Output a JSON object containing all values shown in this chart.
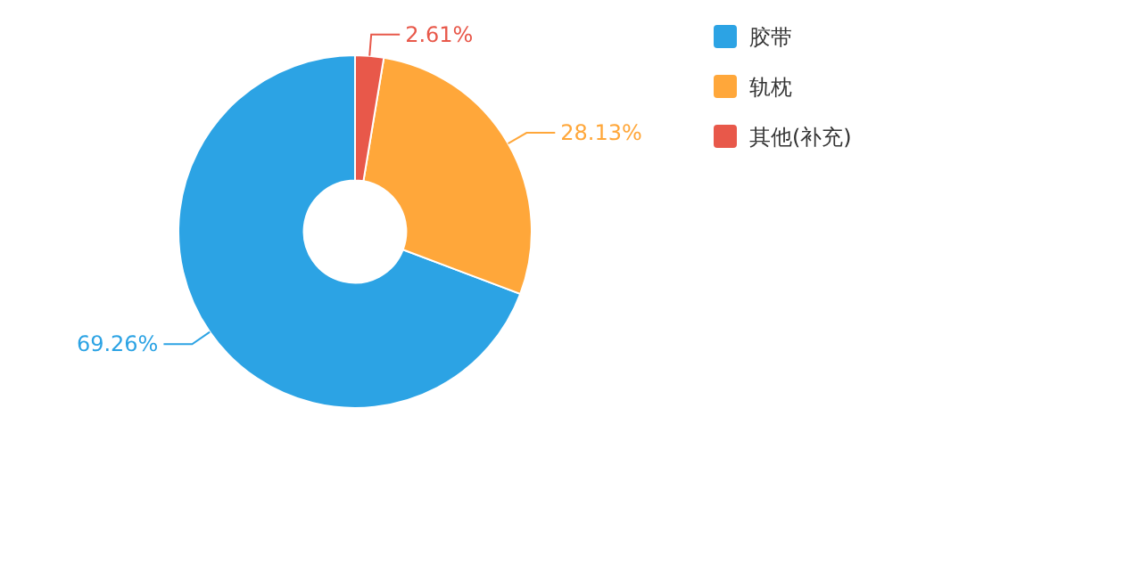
{
  "chart_data": {
    "type": "donut",
    "categories": [
      "胶带",
      "轨枕",
      "其他(补充)"
    ],
    "values": [
      69.26,
      28.13,
      2.61
    ],
    "colors": [
      "#2ca3e4",
      "#ffa73a",
      "#e8584a"
    ],
    "value_labels": [
      "69.26%",
      "28.13%",
      "2.61%"
    ],
    "legend": "top right"
  }
}
